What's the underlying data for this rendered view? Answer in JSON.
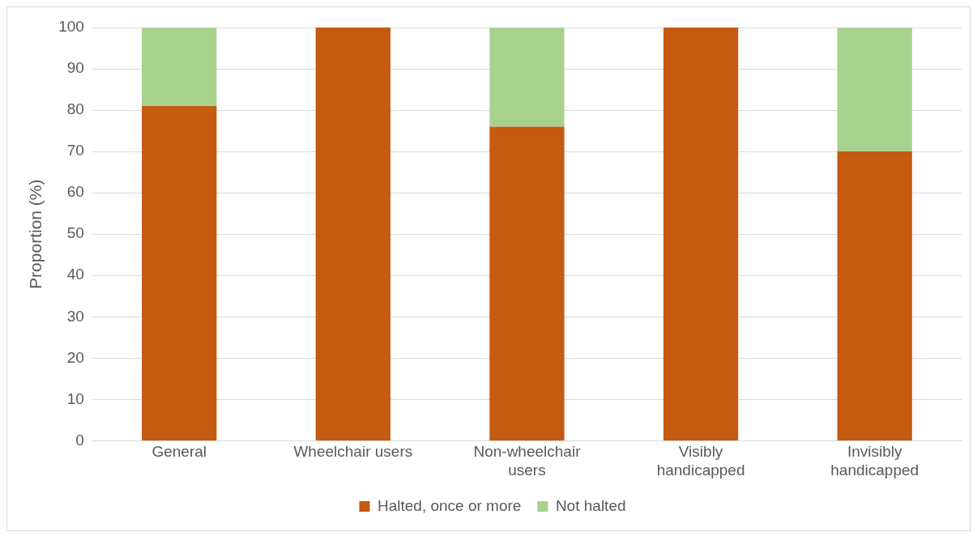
{
  "chart_data": {
    "type": "bar",
    "stacked": true,
    "ylabel": "Proportion (%)",
    "categories": [
      "General",
      "Wheelchair users",
      "Non-wheelchair users",
      "Visibly handicapped",
      "Invisibly handicapped"
    ],
    "series": [
      {
        "name": "Halted, once or more",
        "color": "#c55a11",
        "values": [
          81,
          100,
          76,
          100,
          70
        ]
      },
      {
        "name": "Not halted",
        "color": "#a9d18e",
        "values": [
          19,
          0,
          24,
          0,
          30
        ]
      }
    ],
    "ylim": [
      0,
      100
    ],
    "yticks": [
      0,
      10,
      20,
      30,
      40,
      50,
      60,
      70,
      80,
      90,
      100
    ],
    "grid": "y",
    "legend": "bottom"
  }
}
